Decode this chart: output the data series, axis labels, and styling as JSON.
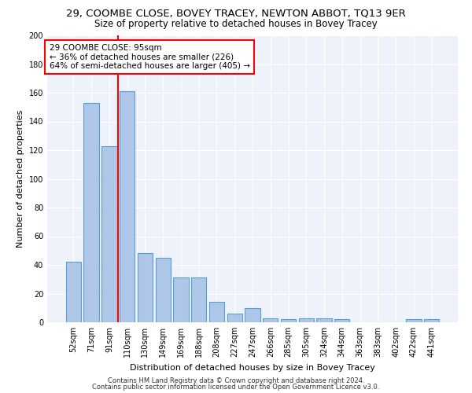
{
  "title": "29, COOMBE CLOSE, BOVEY TRACEY, NEWTON ABBOT, TQ13 9ER",
  "subtitle": "Size of property relative to detached houses in Bovey Tracey",
  "xlabel": "Distribution of detached houses by size in Bovey Tracey",
  "ylabel": "Number of detached properties",
  "categories": [
    "52sqm",
    "71sqm",
    "91sqm",
    "110sqm",
    "130sqm",
    "149sqm",
    "169sqm",
    "188sqm",
    "208sqm",
    "227sqm",
    "247sqm",
    "266sqm",
    "285sqm",
    "305sqm",
    "324sqm",
    "344sqm",
    "363sqm",
    "383sqm",
    "402sqm",
    "422sqm",
    "441sqm"
  ],
  "values": [
    42,
    153,
    123,
    161,
    48,
    45,
    31,
    31,
    14,
    6,
    10,
    3,
    2,
    3,
    3,
    2,
    0,
    0,
    0,
    2,
    2
  ],
  "bar_color": "#aec6e8",
  "bar_edge_color": "#5a9fd4",
  "vline_x": 2.5,
  "vline_color": "red",
  "annotation_box_text": "29 COOMBE CLOSE: 95sqm\n← 36% of detached houses are smaller (226)\n64% of semi-detached houses are larger (405) →",
  "box_edge_color": "red",
  "ylim": [
    0,
    200
  ],
  "yticks": [
    0,
    20,
    40,
    60,
    80,
    100,
    120,
    140,
    160,
    180,
    200
  ],
  "footer1": "Contains HM Land Registry data © Crown copyright and database right 2024.",
  "footer2": "Contains public sector information licensed under the Open Government Licence v3.0.",
  "bg_color": "#eef3fb",
  "title_fontsize": 9.5,
  "subtitle_fontsize": 8.5,
  "annot_fontsize": 7.5,
  "tick_fontsize": 7,
  "ylabel_fontsize": 8,
  "xlabel_fontsize": 8,
  "footer_fontsize": 6
}
